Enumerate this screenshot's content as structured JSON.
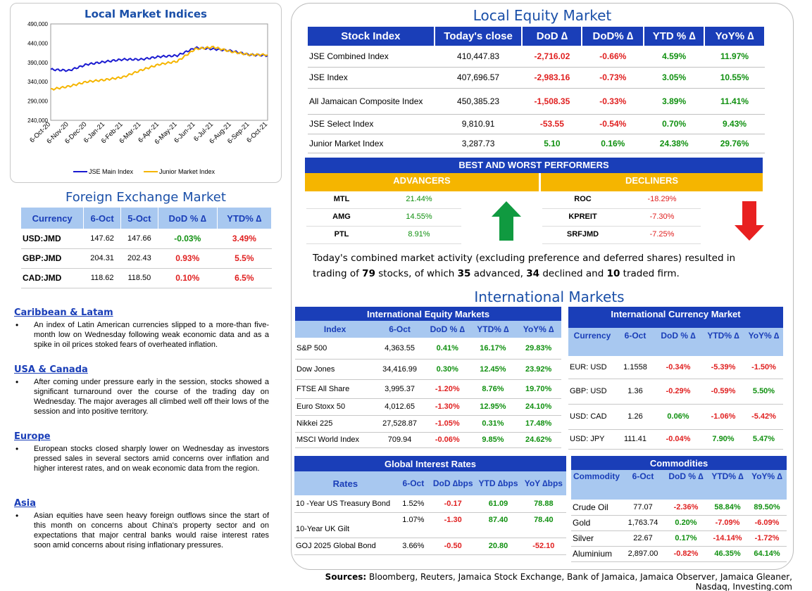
{
  "chart": {
    "title": "Local Market Indices",
    "y_ticks": [
      "490,000",
      "440,000",
      "390,000",
      "340,000",
      "290,000",
      "240,000"
    ],
    "x_ticks": [
      "6-Oct-20",
      "6-Nov-20",
      "6-Dec-20",
      "6-Jan-21",
      "6-Feb-21",
      "6-Mar-21",
      "6-Apr-21",
      "6-May-21",
      "6-Jun-21",
      "6-Jul-21",
      "6-Aug-21",
      "6-Sep-21",
      "6-Oct-21"
    ],
    "legend": [
      "JSE Main Index",
      "Junior Market Index"
    ],
    "colors": {
      "main": "#1a1ad0",
      "junior": "#f5b500"
    }
  },
  "chart_data": {
    "type": "line",
    "title": "Local Market Indices",
    "x": [
      "6-Oct-20",
      "6-Nov-20",
      "6-Dec-20",
      "6-Jan-21",
      "6-Feb-21",
      "6-Mar-21",
      "6-Apr-21",
      "6-May-21",
      "6-Jun-21",
      "6-Jul-21",
      "6-Aug-21",
      "6-Sep-21",
      "6-Oct-21"
    ],
    "ylim": [
      240000,
      490000
    ],
    "series": [
      {
        "name": "JSE Main Index",
        "values": [
          372000,
          369000,
          385000,
          392000,
          398000,
          398000,
          405000,
          408000,
          428000,
          425000,
          420000,
          410000,
          408000
        ]
      },
      {
        "name": "Junior Market Index",
        "values": [
          320000,
          328000,
          340000,
          345000,
          352000,
          370000,
          385000,
          393000,
          425000,
          430000,
          418000,
          410000,
          410000
        ]
      }
    ],
    "legend": "bottom",
    "grid": false
  },
  "fx": {
    "title": "Foreign Exchange Market",
    "headers": [
      "Currency",
      "6-Oct",
      "5-Oct",
      "DoD % ∆",
      "YTD% ∆"
    ],
    "rows": [
      {
        "currency": "USD:JMD",
        "c1": "147.62",
        "c2": "147.66",
        "dod": "-0.03%",
        "ytd": "3.49%"
      },
      {
        "currency": "GBP:JMD",
        "c1": "204.31",
        "c2": "202.43",
        "dod": "0.93%",
        "ytd": "5.5%"
      },
      {
        "currency": "CAD:JMD",
        "c1": "118.62",
        "c2": "118.50",
        "dod": "0.10%",
        "ytd": "6.5%"
      }
    ]
  },
  "news": [
    {
      "heading": "Caribbean & Latam",
      "text": "An index of Latin American currencies slipped to a more-than five-month low on Wednesday following weak economic data and as a spike in oil prices stoked fears of overheated inflation."
    },
    {
      "heading": "USA & Canada",
      "text": "After coming under pressure early in the session, stocks showed a significant turnaround over the course of the trading day on Wednesday. The major averages all climbed well off their lows of the session and into positive territory."
    },
    {
      "heading": "Europe",
      "text": "European stocks closed sharply lower on Wednesday as investors pressed sales in several sectors amid concerns over inflation and higher interest rates, and on weak economic data from the region."
    },
    {
      "heading": "Asia",
      "text": "Asian equities have seen heavy foreign outflows since the start of this month on concerns about China's property sector and on expectations that major central banks would raise interest rates soon amid concerns about rising inflationary pressures."
    }
  ],
  "equity": {
    "title": "Local Equity Market",
    "headers": [
      "Stock Index",
      "Today's close",
      "DoD  ∆",
      "DoD% ∆",
      "YTD % ∆",
      "YoY% ∆"
    ],
    "rows": [
      {
        "name": "JSE Combined Index",
        "close": "410,447.83",
        "dod": "-2,716.02",
        "dodp": "-0.66%",
        "ytd": "4.59%",
        "yoy": "11.97%"
      },
      {
        "name": "JSE Index",
        "close": "407,696.57",
        "dod": "-2,983.16",
        "dodp": "-0.73%",
        "ytd": "3.05%",
        "yoy": "10.55%"
      },
      {
        "name": "All Jamaican Composite Index",
        "close": "450,385.23",
        "dod": "-1,508.35",
        "dodp": "-0.33%",
        "ytd": "3.89%",
        "yoy": "11.41%"
      },
      {
        "name": "JSE Select Index",
        "close": "9,810.91",
        "dod": "-53.55",
        "dodp": "-0.54%",
        "ytd": "0.70%",
        "yoy": "9.43%"
      },
      {
        "name": "Junior Market Index",
        "close": "3,287.73",
        "dod": "5.10",
        "dodp": "0.16%",
        "ytd": "24.38%",
        "yoy": "29.76%"
      }
    ]
  },
  "performers": {
    "title": "BEST AND WORST PERFORMERS",
    "advancers_label": "ADVANCERS",
    "decliners_label": "DECLINERS",
    "advancers": [
      {
        "ticker": "MTL",
        "value": "21.44%"
      },
      {
        "ticker": "AMG",
        "value": "14.55%"
      },
      {
        "ticker": "PTL",
        "value": "8.91%"
      }
    ],
    "decliners": [
      {
        "ticker": "ROC",
        "value": "-18.29%"
      },
      {
        "ticker": "KPREIT",
        "value": "-7.30%"
      },
      {
        "ticker": "SRFJMD",
        "value": "-7.25%"
      }
    ],
    "up_color": "#109a40",
    "down_color": "#e82020"
  },
  "summary": {
    "part1": "Today's combined market activity (excluding preference and deferred shares) resulted in trading of ",
    "total": "79",
    "part2": " stocks, of which ",
    "advanced": "35",
    "part3": " advanced, ",
    "declined": "34",
    "part4": " declined and ",
    "firm": "10",
    "part5": " traded firm."
  },
  "international": {
    "title": "International Markets",
    "equity": {
      "title": "International Equity Markets",
      "headers": [
        "Index",
        "6-Oct",
        "DoD % ∆",
        "YTD% ∆",
        "YoY% ∆"
      ],
      "rows": [
        {
          "name": "S&P 500",
          "v": "4,363.55",
          "dod": "0.41%",
          "ytd": "16.17%",
          "yoy": "29.83%"
        },
        {
          "name": "Dow Jones",
          "v": "34,416.99",
          "dod": "0.30%",
          "ytd": "12.45%",
          "yoy": "23.92%"
        },
        {
          "name": "FTSE All Share",
          "v": "3,995.37",
          "dod": "-1.20%",
          "ytd": "8.76%",
          "yoy": "19.70%"
        },
        {
          "name": "Euro Stoxx 50",
          "v": "4,012.65",
          "dod": "-1.30%",
          "ytd": "12.95%",
          "yoy": "24.10%"
        },
        {
          "name": "Nikkei 225",
          "v": "27,528.87",
          "dod": "-1.05%",
          "ytd": "0.31%",
          "yoy": "17.48%"
        },
        {
          "name": "MSCI World Index",
          "v": "709.94",
          "dod": "-0.06%",
          "ytd": "9.85%",
          "yoy": "24.62%"
        }
      ]
    },
    "currency": {
      "title": "International Currency Market",
      "headers": [
        "Currency",
        "6-Oct",
        "DoD % ∆",
        "YTD% ∆",
        "YoY% ∆"
      ],
      "rows": [
        {
          "name": "EUR: USD",
          "v": "1.1558",
          "dod": "-0.34%",
          "ytd": "-5.39%",
          "yoy": "-1.50%"
        },
        {
          "name": "GBP: USD",
          "v": "1.36",
          "dod": "-0.29%",
          "ytd": "-0.59%",
          "yoy": "5.50%"
        },
        {
          "name": "USD: CAD",
          "v": "1.26",
          "dod": "0.06%",
          "ytd": "-1.06%",
          "yoy": "-5.42%"
        },
        {
          "name": "USD: JPY",
          "v": "111.41",
          "dod": "-0.04%",
          "ytd": "7.90%",
          "yoy": "5.47%"
        }
      ]
    },
    "rates": {
      "title": "Global Interest Rates",
      "headers": [
        "Rates",
        "6-Oct",
        "DoD ∆bps",
        "YTD ∆bps",
        "YoY ∆bps"
      ],
      "rows": [
        {
          "name": "10 -Year US Treasury Bond",
          "v": "1.52%",
          "dod": "-0.17",
          "ytd": "61.09",
          "yoy": "78.88"
        },
        {
          "name": "10-Year UK Gilt",
          "v": "1.07%",
          "dod": "-1.30",
          "ytd": "87.40",
          "yoy": "78.40"
        },
        {
          "name": "GOJ 2025 Global Bond",
          "v": "3.66%",
          "dod": "-0.50",
          "ytd": "20.80",
          "yoy": "-52.10"
        }
      ]
    },
    "commodities": {
      "title": "Commodities",
      "headers": [
        "Commodity",
        "6-Oct",
        "DoD % ∆",
        "YTD% ∆",
        "YoY% ∆"
      ],
      "rows": [
        {
          "name": "Crude Oil",
          "v": "77.07",
          "dod": "-2.36%",
          "ytd": "58.84%",
          "yoy": "89.50%"
        },
        {
          "name": "Gold",
          "v": "1,763.74",
          "dod": "0.20%",
          "ytd": "-7.09%",
          "yoy": "-6.09%"
        },
        {
          "name": "Silver",
          "v": "22.67",
          "dod": "0.17%",
          "ytd": "-14.14%",
          "yoy": "-1.72%"
        },
        {
          "name": "Aluminium",
          "v": "2,897.00",
          "dod": "-0.82%",
          "ytd": "46.35%",
          "yoy": "64.14%"
        }
      ]
    }
  },
  "sources": {
    "label": "Sources:",
    "text": " Bloomberg, Reuters, Jamaica Stock Exchange, Bank of Jamaica, Jamaica Observer, Jamaica Gleaner, Nasdaq, Investing.com"
  }
}
